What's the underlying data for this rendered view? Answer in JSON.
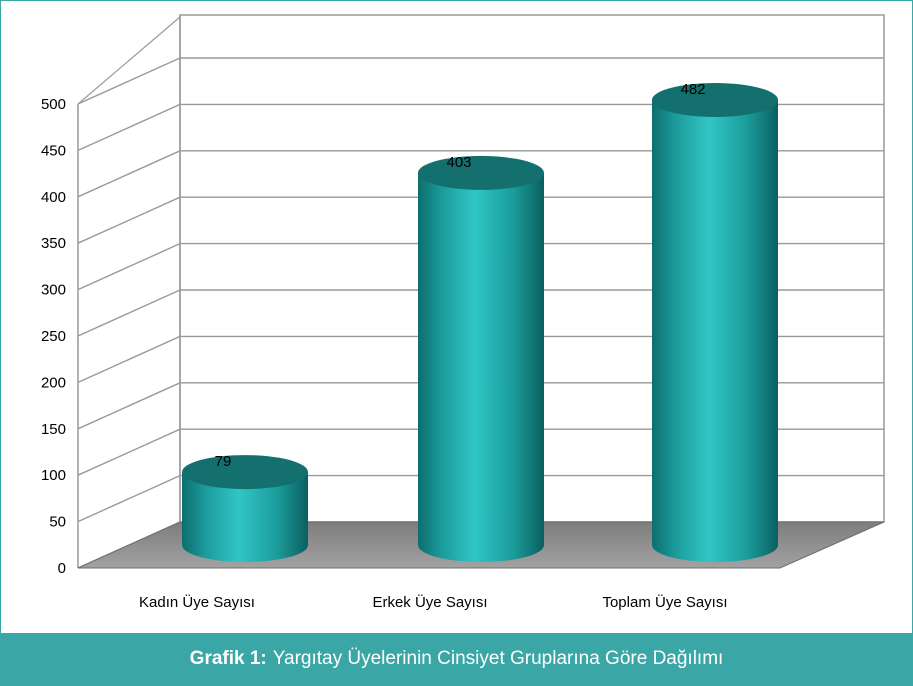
{
  "chart_data": {
    "type": "bar",
    "style": "3d-cylinder",
    "categories": [
      "Kadın Üye Sayısı",
      "Erkek Üye Sayısı",
      "Toplam Üye Sayısı"
    ],
    "values": [
      79,
      403,
      482
    ],
    "data_labels": [
      "79",
      "403",
      "482"
    ],
    "yticks": [
      "0",
      "50",
      "100",
      "150",
      "200",
      "250",
      "300",
      "350",
      "400",
      "450",
      "500"
    ],
    "ylim": [
      0,
      550
    ],
    "grid": true,
    "legend": "none"
  },
  "caption": {
    "label": "Grafik 1:",
    "text": "Yargıtay Üyelerinin Cinsiyet Gruplarına Göre Dağılımı"
  },
  "colors": {
    "frame": "#3aa6a6",
    "bar": "#1fa5a5",
    "bar_dark": "#0c6b6b",
    "bar_top": "#14706f",
    "floor": "#8c8c8c",
    "grid": "#9a9a9a"
  }
}
